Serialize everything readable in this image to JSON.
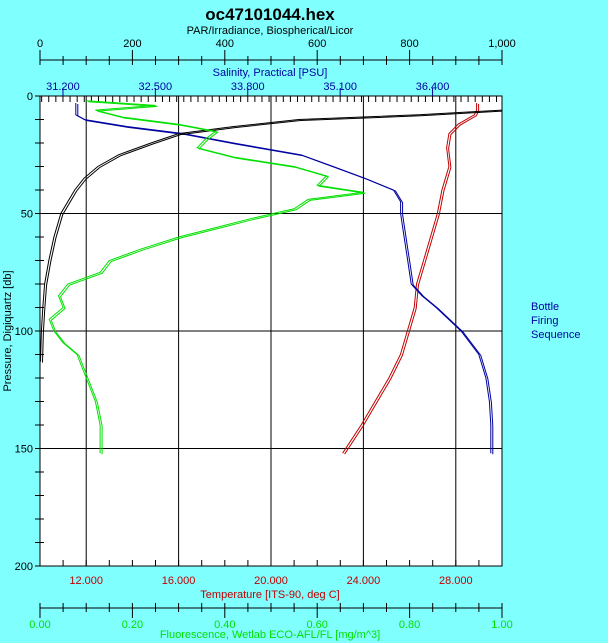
{
  "chart_data": {
    "type": "line",
    "title": "oc47101044.hex",
    "ylabel": "Pressure, Digiquartz [db]",
    "ylim": [
      0,
      200
    ],
    "yticks": [
      0,
      50,
      100,
      150,
      200
    ],
    "grid": true,
    "legend": {
      "position": "right",
      "lines": [
        "Bottle",
        "Firing",
        "Sequence"
      ]
    },
    "axes": {
      "par": {
        "label": "PAR/Irradiance, Biospherical/Licor",
        "position": "top",
        "xlim": [
          0,
          1000
        ],
        "ticks": [
          "0",
          "200",
          "400",
          "600",
          "800",
          "1,000"
        ],
        "tick_values": [
          0,
          200,
          400,
          600,
          800,
          1000
        ],
        "color": "#000000"
      },
      "salinity": {
        "label": "Salinity, Practical [PSU]",
        "position": "top",
        "xlim": [
          30.877,
          37.377
        ],
        "ticks": [
          "31.200",
          "32.500",
          "33.800",
          "35.100",
          "36.400"
        ],
        "tick_values": [
          31.2,
          32.5,
          33.8,
          35.1,
          36.4
        ],
        "color": "#0000a0"
      },
      "temperature": {
        "label": "Temperature [ITS-90, deg C]",
        "position": "bottom",
        "xlim": [
          10,
          30
        ],
        "ticks": [
          "12.000",
          "16.000",
          "20.000",
          "24.000",
          "28.000"
        ],
        "tick_values": [
          12,
          16,
          20,
          24,
          28
        ],
        "color": "#c00000"
      },
      "fluorescence": {
        "label": "Fluorescence, Wetlab ECO-AFL/FL [mg/m^3]",
        "position": "bottom",
        "xlim": [
          0,
          1
        ],
        "ticks": [
          "0.00",
          "0.20",
          "0.40",
          "0.60",
          "0.80",
          "1.00"
        ],
        "tick_values": [
          0,
          0.2,
          0.4,
          0.6,
          0.8,
          1.0
        ],
        "color": "#00e000"
      }
    },
    "series": [
      {
        "name": "Temperature",
        "axis": "temperature",
        "color": "#c00000",
        "pressure": [
          3,
          6,
          8,
          12,
          16,
          22,
          30,
          40,
          50,
          60,
          70,
          80,
          90,
          100,
          110,
          120,
          130,
          140,
          152
        ],
        "values": [
          28.9,
          28.9,
          28.8,
          28.1,
          27.7,
          27.6,
          27.7,
          27.4,
          27.2,
          26.9,
          26.6,
          26.3,
          26.2,
          25.9,
          25.6,
          25.1,
          24.5,
          23.9,
          23.1
        ]
      },
      {
        "name": "Salinity",
        "axis": "salinity",
        "color": "#0000a0",
        "pressure": [
          3,
          8,
          10,
          13,
          16,
          20,
          25,
          30,
          35,
          40,
          45,
          50,
          60,
          70,
          80,
          85,
          90,
          100,
          110,
          120,
          130,
          140,
          152
        ],
        "values": [
          31.38,
          31.38,
          31.5,
          32.1,
          32.9,
          33.6,
          34.55,
          35.0,
          35.45,
          35.85,
          35.95,
          35.95,
          36.0,
          36.05,
          36.1,
          36.25,
          36.45,
          36.8,
          37.05,
          37.15,
          37.2,
          37.22,
          37.22
        ]
      },
      {
        "name": "PAR",
        "axis": "par",
        "color": "#000000",
        "pressure": [
          6,
          8,
          10,
          13,
          16,
          20,
          25,
          30,
          35,
          40,
          50,
          60,
          70,
          80,
          90,
          100,
          113
        ],
        "values": [
          1000,
          820,
          560,
          420,
          300,
          240,
          170,
          125,
          95,
          75,
          45,
          30,
          19,
          10,
          6,
          3,
          1
        ]
      },
      {
        "name": "Fluorescence",
        "axis": "fluorescence",
        "color": "#00e000",
        "pressure": [
          2,
          4,
          6,
          9,
          12,
          15,
          18,
          22,
          26,
          30,
          34,
          38,
          41,
          44,
          48,
          52,
          56,
          60,
          65,
          70,
          75,
          80,
          85,
          90,
          95,
          100,
          105,
          110,
          120,
          130,
          140,
          152
        ],
        "values": [
          0.1,
          0.25,
          0.12,
          0.18,
          0.3,
          0.38,
          0.36,
          0.34,
          0.42,
          0.55,
          0.62,
          0.6,
          0.7,
          0.58,
          0.55,
          0.46,
          0.38,
          0.3,
          0.22,
          0.15,
          0.13,
          0.06,
          0.04,
          0.05,
          0.02,
          0.03,
          0.05,
          0.08,
          0.1,
          0.12,
          0.13,
          0.13
        ]
      }
    ]
  }
}
